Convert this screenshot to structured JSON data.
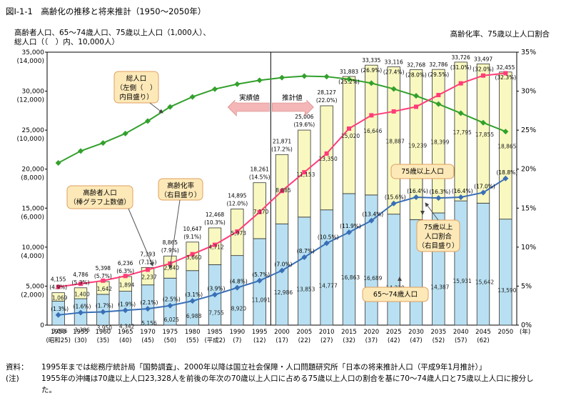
{
  "title": "図Ⅰ-1-1　高齢化の推移と将来推計（1950～2050年）",
  "left_axis_title": "高齢者人口、65～74歳人口、75歳以上人口（1,000人）、\n総人口（（　）内、10,000人）",
  "right_axis_title": "高齢化率、75歳以上人口割合",
  "colors": {
    "bar_65_74": "#b8e0f2",
    "bar_75_plus": "#f8f8c0",
    "bar_stroke": "#333333",
    "total_pop_line": "#33a02c",
    "aging_rate_line": "#ff3c78",
    "ratio_75_line": "#3a6fb6",
    "callout_fill": "#fde9b8",
    "callout_stroke": "#e0a060",
    "arrow_fill": "#f4b6b6"
  },
  "chart_data": {
    "type": "bar+line",
    "categories": [
      "1950",
      "1955",
      "1960",
      "1965",
      "1970",
      "1975",
      "1980",
      "1985",
      "1990",
      "1995",
      "2000",
      "2005",
      "2010",
      "2015",
      "2020",
      "2025",
      "2030",
      "2035",
      "2040",
      "2045",
      "2050"
    ],
    "category_sublabels": [
      "(昭和25)",
      "(30)",
      "(35)",
      "(40)",
      "(45)",
      "(50)",
      "(55)",
      "(平成2)",
      "(7)",
      "(12)",
      "(17)",
      "(22)",
      "(27)",
      "(32)",
      "(37)",
      "(42)",
      "(47)",
      "(52)",
      "(57)",
      "(62)",
      ""
    ],
    "x_unit_label": "(年)",
    "series_bars": [
      {
        "name": "65～74歳人口",
        "values": [
          3086,
          3386,
          3950,
          4342,
          5156,
          6025,
          6988,
          7755,
          8920,
          11091,
          12986,
          13853,
          14777,
          16863,
          16689,
          14229,
          13529,
          14387,
          15931,
          15642,
          13590
        ],
        "labels": [
          "3,086",
          "3,386",
          "3,950",
          "4,342",
          "5,156",
          "6,025",
          "6,988",
          "7,755",
          "8,920",
          "11,091",
          "12,986",
          "13,853",
          "14,777",
          "16,863",
          "16,689",
          "14,229",
          "13,529",
          "14,387",
          "15,931",
          "15,642",
          "13,590"
        ]
      },
      {
        "name": "75歳以上人口",
        "values": [
          1069,
          1400,
          1642,
          1894,
          2237,
          2840,
          3660,
          4712,
          5973,
          7170,
          8885,
          11153,
          13350,
          15020,
          16646,
          18887,
          19239,
          18399,
          17795,
          17855,
          18865
        ],
        "labels": [
          "1,069",
          "1,400",
          "1,642",
          "1,894",
          "2,237",
          "2,840",
          "3,660",
          "4,712",
          "5,973",
          "7,170",
          "8,885",
          "11,153",
          "13,350",
          "15,020",
          "16,646",
          "18,887",
          "19,239",
          "18,399",
          "17,795",
          "17,855",
          "18,865"
        ]
      }
    ],
    "bar_top_labels": [
      "4,155",
      "4,786",
      "5,398",
      "6,236",
      "7,393",
      "8,865",
      "10,647",
      "12,468",
      "14,895",
      "18,261",
      "21,871",
      "25,006",
      "28,127",
      "31,883",
      "33,335",
      "33,116",
      "32,768",
      "32,786",
      "33,726",
      "33,497",
      "32,455"
    ],
    "aging_rate": {
      "name": "高齢化率",
      "values": [
        4.9,
        5.3,
        5.7,
        6.3,
        7.1,
        7.9,
        9.1,
        10.3,
        12.0,
        14.5,
        17.2,
        19.6,
        22.0,
        25.2,
        26.9,
        27.4,
        28.0,
        29.5,
        31.0,
        32.0,
        32.3
      ],
      "labels": [
        "(4.9%)",
        "(5.3%)",
        "(5.7%)",
        "(6.3%)",
        "(7.1%)",
        "(7.9%)",
        "(9.1%)",
        "(10.3%)",
        "(12.0%)",
        "(14.5%)",
        "(17.2%)",
        "(19.6%)",
        "(22.0%)",
        "(25.2%)",
        "(26.9%)",
        "(27.4%)",
        "(28.0%)",
        "(29.5%)",
        "(31.0%)",
        "(32.0%)",
        "(32.3%)"
      ]
    },
    "ratio_75_plus": {
      "name": "75歳以上人口割合",
      "values": [
        1.3,
        1.6,
        1.7,
        1.9,
        2.1,
        2.5,
        3.1,
        3.9,
        4.8,
        5.7,
        7.0,
        8.7,
        10.5,
        11.9,
        13.4,
        15.6,
        16.4,
        16.3,
        16.4,
        17.0,
        18.8
      ],
      "labels": [
        "(1.3%)",
        "(1.6%)",
        "(1.7%)",
        "(1.9%)",
        "(2.1%)",
        "(2.5%)",
        "(3.1%)",
        "(3.9%)",
        "(4.8%)",
        "(5.7%)",
        "(7.0%)",
        "(8.7%)",
        "(10.5%)",
        "(11.9%)",
        "(13.4%)",
        "(15.6%)",
        "(16.4%)",
        "(16.3%)",
        "(16.4%)",
        "(17.0%)",
        "(18.8%)"
      ]
    },
    "total_population": {
      "name": "総人口",
      "unit": "10,000人",
      "values": [
        8320,
        8928,
        9342,
        9828,
        10467,
        11194,
        11706,
        12105,
        12361,
        12557,
        12693,
        12774,
        12747,
        12611,
        12410,
        12114,
        11758,
        11337,
        10869,
        10383,
        9928
      ]
    },
    "left_axis": {
      "ylim": [
        0,
        35000
      ],
      "ticks": [
        0,
        5000,
        10000,
        15000,
        20000,
        25000,
        30000,
        35000
      ],
      "tick_labels": [
        "0",
        "5,000",
        "10,000",
        "15,000",
        "20,000",
        "25,000",
        "30,000",
        "35,000"
      ],
      "sub_labels": [
        "",
        "(2,000)",
        "(4,000)",
        "(6,000)",
        "(8,000)",
        "(10,000)",
        "(12,000)",
        "(14,000)"
      ]
    },
    "right_axis": {
      "ylim": [
        0,
        35
      ],
      "tick_labels": [
        "0%",
        "5%",
        "10%",
        "15%",
        "20%",
        "25%",
        "30%",
        "35%"
      ]
    },
    "split_label_actual": "実績値",
    "split_label_projected": "推計値"
  },
  "callouts": {
    "total_pop": [
      "総人口",
      "（左側（　）",
      "内目盛り）"
    ],
    "elderly_pop": [
      "高齢者人口",
      "（棒グラフ上数値）"
    ],
    "aging_rate": [
      "高齢化率",
      "（右目盛り）"
    ],
    "pop_75": [
      "75歳以上人口"
    ],
    "ratio_75": [
      "75歳以上",
      "人口割合",
      "（右目盛り）"
    ],
    "pop_65_74": [
      "65～74歳人口"
    ]
  },
  "notes": [
    {
      "label": "資料：",
      "text": "1995年までは総務庁統計局「国勢調査」、2000年以降は国立社会保障・人口問題研究所「日本の将来推計人口（平成9年1月推計）」"
    },
    {
      "label": "(注)",
      "text": "1955年の沖縄は70歳以上人口23,328人を前後の年次の70歳以上人口に占める75歳以上人口の割合を基に70～74歳人口と75歳以上人口に按分した。"
    }
  ]
}
